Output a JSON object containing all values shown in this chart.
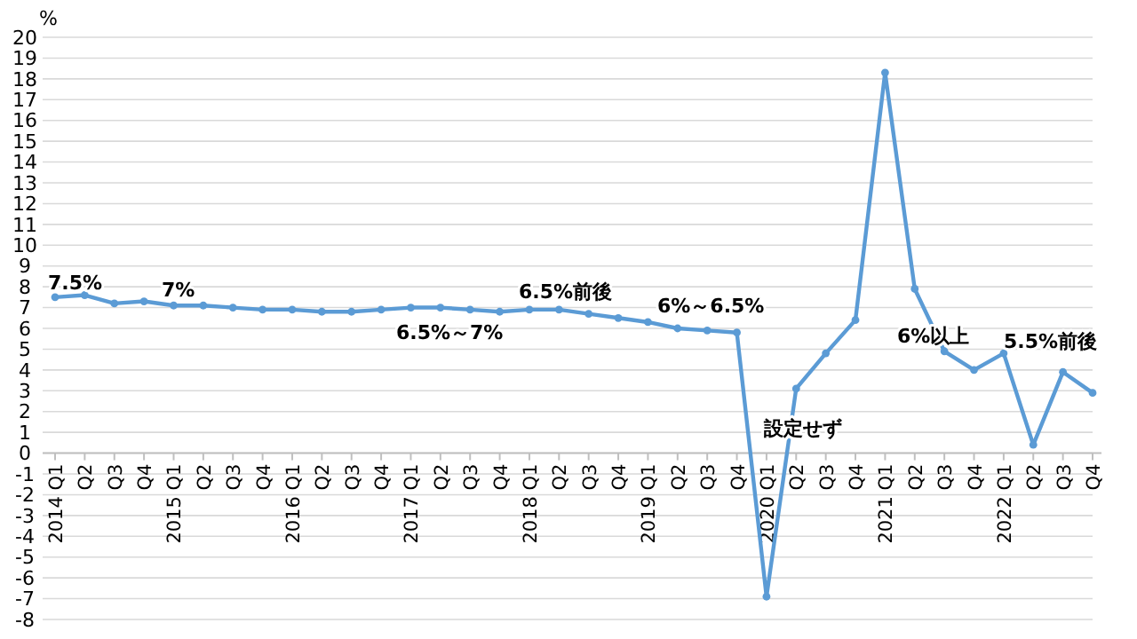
{
  "chart_data": {
    "type": "line",
    "ylabel": "%",
    "categories": [
      "2014 Q1",
      "Q2",
      "Q3",
      "Q4",
      "2015 Q1",
      "Q2",
      "Q3",
      "Q4",
      "2016 Q1",
      "Q2",
      "Q3",
      "Q4",
      "2017 Q1",
      "Q2",
      "Q3",
      "Q4",
      "2018 Q1",
      "Q2",
      "Q3",
      "Q4",
      "2019 Q1",
      "Q2",
      "Q3",
      "Q4",
      "2020 Q1",
      "Q2",
      "Q3",
      "Q4",
      "2021 Q1",
      "Q2",
      "Q3",
      "Q4",
      "2022 Q1",
      "Q2",
      "Q3",
      "Q4"
    ],
    "series": [
      {
        "color": "#5b9bd5",
        "values": [
          7.5,
          7.6,
          7.2,
          7.3,
          7.1,
          7.1,
          7.0,
          6.9,
          6.9,
          6.8,
          6.8,
          6.9,
          7.0,
          7.0,
          6.9,
          6.8,
          6.9,
          6.9,
          6.7,
          6.5,
          6.3,
          6.0,
          5.9,
          5.8,
          -6.9,
          3.1,
          4.8,
          6.4,
          18.3,
          7.9,
          4.9,
          4.0,
          4.8,
          0.4,
          3.9,
          2.9
        ]
      }
    ],
    "ylim": [
      -8,
      20
    ],
    "yticks": [
      -8,
      -7,
      -6,
      -5,
      -4,
      -3,
      -2,
      -1,
      0,
      1,
      2,
      3,
      4,
      5,
      6,
      7,
      8,
      9,
      10,
      11,
      12,
      13,
      14,
      15,
      16,
      17,
      18,
      19,
      20
    ],
    "grid": "y",
    "marker": "circle",
    "annotations": [
      "7.5%",
      "7%",
      "6.5%～7%",
      "6.5%前後",
      "6%～6.5%",
      "設定せず",
      "6%以上",
      "5.5%前後"
    ]
  }
}
